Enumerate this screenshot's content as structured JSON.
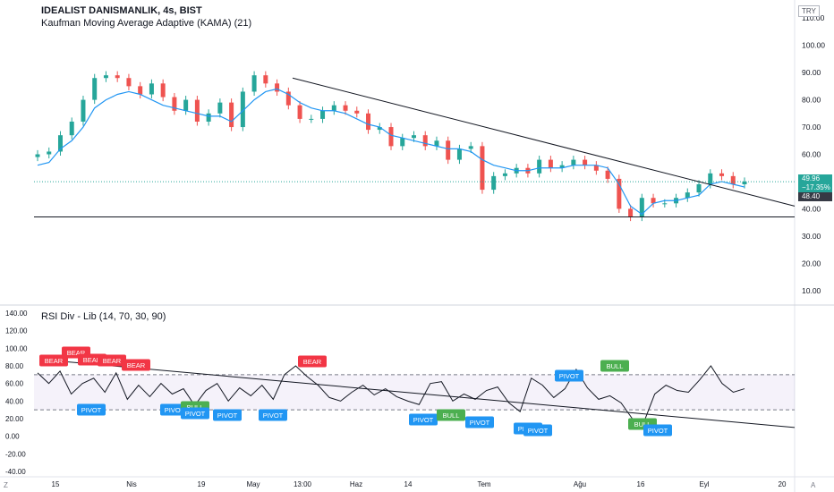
{
  "header": {
    "title": "IDEALIST DANISMANLIK, 4s, BIST",
    "indicator": "Kaufman Moving Average Adaptive (KAMA) (21)",
    "rsi_indicator": "RSI Div - Lib (14, 70, 30, 90)",
    "currency": "TRY"
  },
  "price_axis_labels": [
    "110.00",
    "100.00",
    "90.00",
    "80.00",
    "70.00",
    "60.00",
    "50.00",
    "40.00",
    "30.00",
    "20.00",
    "10.00"
  ],
  "rsi_axis_labels": [
    "140.00",
    "120.00",
    "100.00",
    "80.00",
    "60.00",
    "40.00",
    "20.00",
    "0.00",
    "-20.00",
    "-40.00"
  ],
  "time_labels": [
    "15",
    "Nis",
    "19",
    "May",
    "13:00",
    "Haz",
    "14",
    "Tem",
    "Ağu",
    "16",
    "Eyl",
    "20"
  ],
  "price_tags": {
    "last": "49.96",
    "change": "−17.35%",
    "kama": "48.40"
  },
  "corner_labels": {
    "left": "Z",
    "right": "A"
  },
  "colors": {
    "up": "#26a69a",
    "down": "#ef5350",
    "kama": "#2196f3",
    "bear": "#f23645",
    "bull": "#4caf50",
    "pivot": "#2196f3",
    "line": "#131722"
  },
  "chart_data": {
    "type": "line",
    "title": "IDEALIST DANISMANLIK, 4s, BIST",
    "xlabel": "",
    "ylabel": "",
    "ylim": [
      5,
      115
    ],
    "grid": false,
    "series": [
      {
        "name": "Kaufman Moving Average Adaptive (KAMA) (21)",
        "values": [
          56,
          57,
          62,
          65,
          70,
          77,
          80,
          82,
          83,
          82,
          80,
          78,
          77,
          76,
          75,
          74,
          74,
          72,
          76,
          80,
          83,
          84,
          82,
          79,
          77,
          76,
          76,
          75,
          73,
          71,
          70,
          67,
          66,
          65,
          64,
          63,
          62,
          62,
          61,
          58,
          56,
          55,
          54,
          54,
          55,
          55,
          55,
          56,
          56,
          56,
          55,
          49,
          41,
          38,
          42,
          43,
          43,
          44,
          45,
          49,
          50,
          49,
          48
        ]
      },
      {
        "name": "close",
        "values": [
          60,
          61,
          67,
          72,
          80,
          88,
          89,
          88,
          85,
          82,
          86,
          81,
          76,
          80,
          72,
          75,
          79,
          70,
          83,
          89,
          86,
          83,
          78,
          73,
          73,
          76,
          78,
          76,
          75,
          69,
          70,
          63,
          66,
          67,
          63,
          65,
          58,
          62,
          63,
          47,
          52,
          53,
          55,
          53,
          58,
          55,
          56,
          58,
          56,
          54,
          51,
          40,
          37,
          44,
          42,
          42,
          44,
          46,
          49,
          53,
          52,
          49,
          50
        ]
      }
    ],
    "lines": [
      {
        "name": "trendline",
        "x1": 0.34,
        "y1": 88,
        "x2": 1.0,
        "y2": 41
      },
      {
        "name": "support",
        "y": 37
      }
    ],
    "rsi": {
      "ylim": [
        -45,
        145
      ],
      "levels": [
        70,
        30
      ],
      "trendline": {
        "y_start": 86,
        "y_end": 10
      },
      "values": [
        72,
        60,
        74,
        48,
        60,
        66,
        50,
        72,
        42,
        58,
        45,
        60,
        48,
        54,
        35,
        52,
        60,
        40,
        55,
        46,
        58,
        42,
        70,
        80,
        68,
        58,
        44,
        40,
        50,
        58,
        47,
        54,
        45,
        40,
        36,
        60,
        62,
        40,
        48,
        42,
        52,
        56,
        38,
        28,
        66,
        58,
        44,
        54,
        76,
        55,
        42,
        46,
        38,
        20,
        15,
        48,
        58,
        52,
        50,
        64,
        80,
        60,
        50,
        54
      ],
      "signals": [
        {
          "type": "bear",
          "label": "BEAR",
          "n": 0
        },
        {
          "type": "bear",
          "label": "BEAR",
          "n": 1
        },
        {
          "type": "bear",
          "label": "BEAR",
          "n": 2
        },
        {
          "type": "bear",
          "label": "BEAR",
          "n": 3
        },
        {
          "type": "bear",
          "label": "BEAR",
          "n": 4
        },
        {
          "type": "pivot",
          "label": "PIVOT",
          "n": 5
        },
        {
          "type": "pivot",
          "label": "PIVOT",
          "n": 6
        },
        {
          "type": "bull",
          "label": "BULL",
          "n": 7
        },
        {
          "type": "pivot",
          "label": "PIVOT",
          "n": 8
        },
        {
          "type": "pivot",
          "label": "PIVOT",
          "n": 9
        },
        {
          "type": "pivot",
          "label": "PIVOT",
          "n": 10
        },
        {
          "type": "bear",
          "label": "BEAR",
          "n": 11
        },
        {
          "type": "pivot",
          "label": "PIVOT",
          "n": 12
        },
        {
          "type": "bull",
          "label": "BULL",
          "n": 13
        },
        {
          "type": "pivot",
          "label": "PIVOT",
          "n": 14
        },
        {
          "type": "pivot",
          "label": "PIVOT",
          "n": 15
        },
        {
          "type": "pivot",
          "label": "PIVOT",
          "n": 16
        },
        {
          "type": "pivot",
          "label": "PIVOT",
          "n": 17
        },
        {
          "type": "bull",
          "label": "BULL",
          "n": 18
        },
        {
          "type": "bull",
          "label": "BULL",
          "n": 19
        },
        {
          "type": "pivot",
          "label": "PIVOT",
          "n": 20
        }
      ]
    }
  }
}
